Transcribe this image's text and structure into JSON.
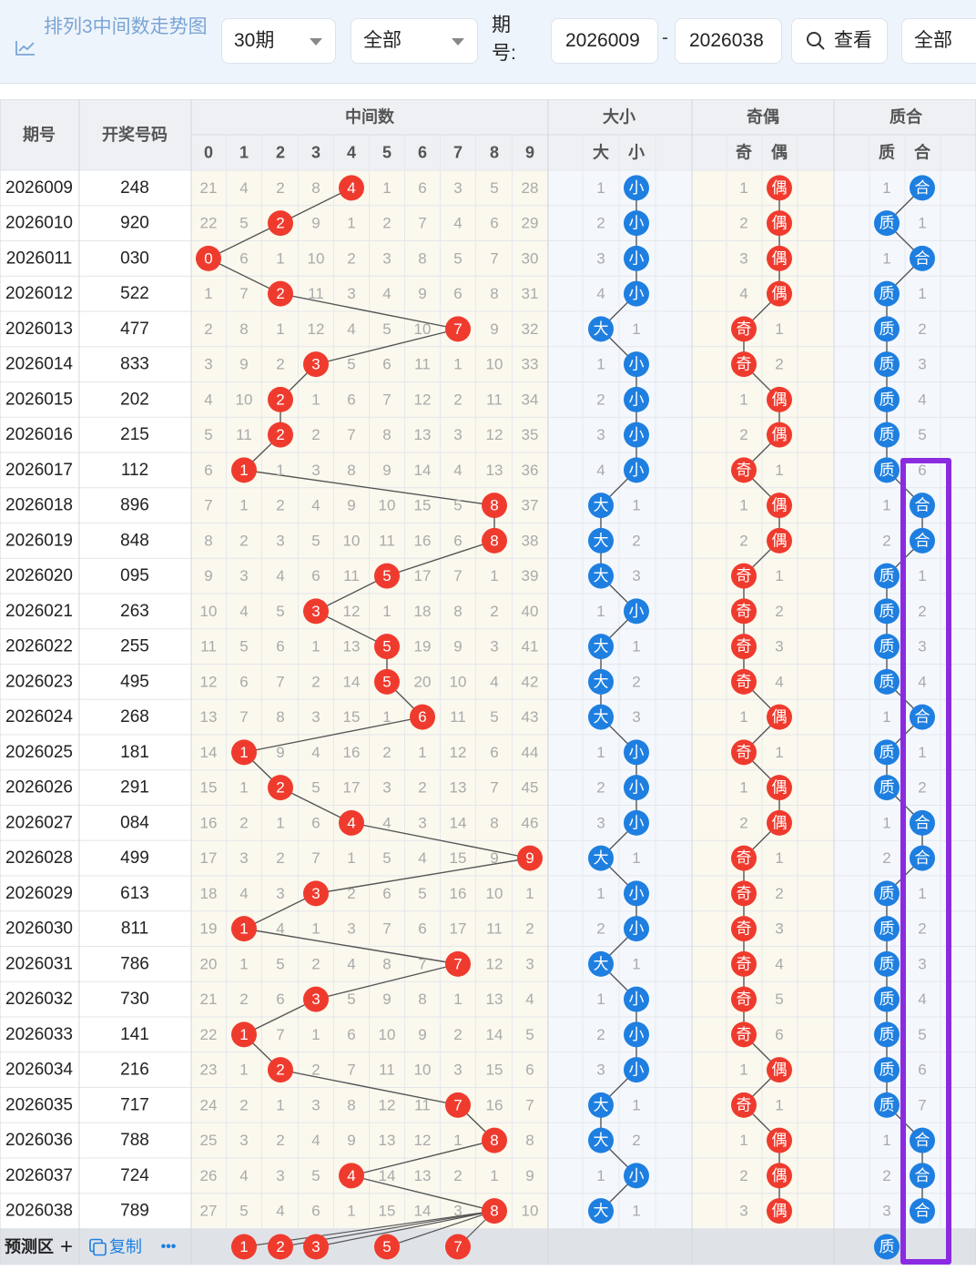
{
  "toolbar": {
    "title": "排列3中间数走势图",
    "periods_select": "30期",
    "scope_select": "全部",
    "period_label": "期号:",
    "start_period": "2026009",
    "end_period": "2026038",
    "dash": "-",
    "view_button": "查看",
    "filter_select": "全部"
  },
  "headers": {
    "issue": "期号",
    "number": "开奖号码",
    "middle": "中间数",
    "size": "大小",
    "parity": "奇偶",
    "prime": "质合",
    "digits": [
      "0",
      "1",
      "2",
      "3",
      "4",
      "5",
      "6",
      "7",
      "8",
      "9"
    ],
    "size_cols": [
      "大",
      "小"
    ],
    "parity_cols": [
      "奇",
      "偶"
    ],
    "prime_cols": [
      "质",
      "合"
    ]
  },
  "rows": [
    {
      "issue": "2026009",
      "number": "248",
      "mid": 4,
      "digit_misses": [
        21,
        4,
        2,
        8,
        null,
        1,
        6,
        3,
        5,
        28
      ],
      "size": "小",
      "size_miss": 1,
      "parity": "偶",
      "parity_miss": 1,
      "prime": "合",
      "prime_miss": 1
    },
    {
      "issue": "2026010",
      "number": "920",
      "mid": 2,
      "digit_misses": [
        22,
        5,
        null,
        9,
        1,
        2,
        7,
        4,
        6,
        29
      ],
      "size": "小",
      "size_miss": 2,
      "parity": "偶",
      "parity_miss": 2,
      "prime": "质",
      "prime_miss": 1
    },
    {
      "issue": "2026011",
      "number": "030",
      "mid": 0,
      "digit_misses": [
        null,
        6,
        1,
        10,
        2,
        3,
        8,
        5,
        7,
        30
      ],
      "size": "小",
      "size_miss": 3,
      "parity": "偶",
      "parity_miss": 3,
      "prime": "合",
      "prime_miss": 1
    },
    {
      "issue": "2026012",
      "number": "522",
      "mid": 2,
      "digit_misses": [
        1,
        7,
        null,
        11,
        3,
        4,
        9,
        6,
        8,
        31
      ],
      "size": "小",
      "size_miss": 4,
      "parity": "偶",
      "parity_miss": 4,
      "prime": "质",
      "prime_miss": 1
    },
    {
      "issue": "2026013",
      "number": "477",
      "mid": 7,
      "digit_misses": [
        2,
        8,
        1,
        12,
        4,
        5,
        10,
        null,
        9,
        32
      ],
      "size": "大",
      "size_miss": 1,
      "parity": "奇",
      "parity_miss": 1,
      "prime": "质",
      "prime_miss": 2
    },
    {
      "issue": "2026014",
      "number": "833",
      "mid": 3,
      "digit_misses": [
        3,
        9,
        2,
        null,
        5,
        6,
        11,
        1,
        10,
        33
      ],
      "size": "小",
      "size_miss": 1,
      "parity": "奇",
      "parity_miss": 2,
      "prime": "质",
      "prime_miss": 3
    },
    {
      "issue": "2026015",
      "number": "202",
      "mid": 2,
      "digit_misses": [
        4,
        10,
        null,
        1,
        6,
        7,
        12,
        2,
        11,
        34
      ],
      "size": "小",
      "size_miss": 2,
      "parity": "偶",
      "parity_miss": 1,
      "prime": "质",
      "prime_miss": 4
    },
    {
      "issue": "2026016",
      "number": "215",
      "mid": 2,
      "digit_misses": [
        5,
        11,
        null,
        2,
        7,
        8,
        13,
        3,
        12,
        35
      ],
      "size": "小",
      "size_miss": 3,
      "parity": "偶",
      "parity_miss": 2,
      "prime": "质",
      "prime_miss": 5
    },
    {
      "issue": "2026017",
      "number": "112",
      "mid": 1,
      "digit_misses": [
        6,
        null,
        1,
        3,
        8,
        9,
        14,
        4,
        13,
        36
      ],
      "size": "小",
      "size_miss": 4,
      "parity": "奇",
      "parity_miss": 1,
      "prime": "质",
      "prime_miss": 6
    },
    {
      "issue": "2026018",
      "number": "896",
      "mid": 8,
      "digit_misses": [
        7,
        1,
        2,
        4,
        9,
        10,
        15,
        5,
        null,
        37
      ],
      "size": "大",
      "size_miss": 1,
      "parity": "偶",
      "parity_miss": 1,
      "prime": "合",
      "prime_miss": 1
    },
    {
      "issue": "2026019",
      "number": "848",
      "mid": 8,
      "digit_misses": [
        8,
        2,
        3,
        5,
        10,
        11,
        16,
        6,
        null,
        38
      ],
      "size": "大",
      "size_miss": 2,
      "parity": "偶",
      "parity_miss": 2,
      "prime": "合",
      "prime_miss": 2
    },
    {
      "issue": "2026020",
      "number": "095",
      "mid": 5,
      "digit_misses": [
        9,
        3,
        4,
        6,
        11,
        null,
        17,
        7,
        1,
        39
      ],
      "size": "大",
      "size_miss": 3,
      "parity": "奇",
      "parity_miss": 1,
      "prime": "质",
      "prime_miss": 1
    },
    {
      "issue": "2026021",
      "number": "263",
      "mid": 3,
      "digit_misses": [
        10,
        4,
        5,
        null,
        12,
        1,
        18,
        8,
        2,
        40
      ],
      "size": "小",
      "size_miss": 1,
      "parity": "奇",
      "parity_miss": 2,
      "prime": "质",
      "prime_miss": 2
    },
    {
      "issue": "2026022",
      "number": "255",
      "mid": 5,
      "digit_misses": [
        11,
        5,
        6,
        1,
        13,
        null,
        19,
        9,
        3,
        41
      ],
      "size": "大",
      "size_miss": 1,
      "parity": "奇",
      "parity_miss": 3,
      "prime": "质",
      "prime_miss": 3
    },
    {
      "issue": "2026023",
      "number": "495",
      "mid": 5,
      "digit_misses": [
        12,
        6,
        7,
        2,
        14,
        null,
        20,
        10,
        4,
        42
      ],
      "size": "大",
      "size_miss": 2,
      "parity": "奇",
      "parity_miss": 4,
      "prime": "质",
      "prime_miss": 4
    },
    {
      "issue": "2026024",
      "number": "268",
      "mid": 6,
      "digit_misses": [
        13,
        7,
        8,
        3,
        15,
        1,
        null,
        11,
        5,
        43
      ],
      "size": "大",
      "size_miss": 3,
      "parity": "偶",
      "parity_miss": 1,
      "prime": "合",
      "prime_miss": 1
    },
    {
      "issue": "2026025",
      "number": "181",
      "mid": 1,
      "digit_misses": [
        14,
        null,
        9,
        4,
        16,
        2,
        1,
        12,
        6,
        44
      ],
      "size": "小",
      "size_miss": 1,
      "parity": "奇",
      "parity_miss": 1,
      "prime": "质",
      "prime_miss": 1
    },
    {
      "issue": "2026026",
      "number": "291",
      "mid": 2,
      "digit_misses": [
        15,
        1,
        null,
        5,
        17,
        3,
        2,
        13,
        7,
        45
      ],
      "size": "小",
      "size_miss": 2,
      "parity": "偶",
      "parity_miss": 1,
      "prime": "质",
      "prime_miss": 2
    },
    {
      "issue": "2026027",
      "number": "084",
      "mid": 4,
      "digit_misses": [
        16,
        2,
        1,
        6,
        null,
        4,
        3,
        14,
        8,
        46
      ],
      "size": "小",
      "size_miss": 3,
      "parity": "偶",
      "parity_miss": 2,
      "prime": "合",
      "prime_miss": 1
    },
    {
      "issue": "2026028",
      "number": "499",
      "mid": 9,
      "digit_misses": [
        17,
        3,
        2,
        7,
        1,
        5,
        4,
        15,
        9,
        null
      ],
      "size": "大",
      "size_miss": 1,
      "parity": "奇",
      "parity_miss": 1,
      "prime": "合",
      "prime_miss": 2
    },
    {
      "issue": "2026029",
      "number": "613",
      "mid": 3,
      "digit_misses": [
        18,
        4,
        3,
        null,
        2,
        6,
        5,
        16,
        10,
        1
      ],
      "size": "小",
      "size_miss": 1,
      "parity": "奇",
      "parity_miss": 2,
      "prime": "质",
      "prime_miss": 1
    },
    {
      "issue": "2026030",
      "number": "811",
      "mid": 1,
      "digit_misses": [
        19,
        null,
        4,
        1,
        3,
        7,
        6,
        17,
        11,
        2
      ],
      "size": "小",
      "size_miss": 2,
      "parity": "奇",
      "parity_miss": 3,
      "prime": "质",
      "prime_miss": 2
    },
    {
      "issue": "2026031",
      "number": "786",
      "mid": 7,
      "digit_misses": [
        20,
        1,
        5,
        2,
        4,
        8,
        7,
        null,
        12,
        3
      ],
      "size": "大",
      "size_miss": 1,
      "parity": "奇",
      "parity_miss": 4,
      "prime": "质",
      "prime_miss": 3
    },
    {
      "issue": "2026032",
      "number": "730",
      "mid": 3,
      "digit_misses": [
        21,
        2,
        6,
        null,
        5,
        9,
        8,
        1,
        13,
        4
      ],
      "size": "小",
      "size_miss": 1,
      "parity": "奇",
      "parity_miss": 5,
      "prime": "质",
      "prime_miss": 4
    },
    {
      "issue": "2026033",
      "number": "141",
      "mid": 1,
      "digit_misses": [
        22,
        null,
        7,
        1,
        6,
        10,
        9,
        2,
        14,
        5
      ],
      "size": "小",
      "size_miss": 2,
      "parity": "奇",
      "parity_miss": 6,
      "prime": "质",
      "prime_miss": 5
    },
    {
      "issue": "2026034",
      "number": "216",
      "mid": 2,
      "digit_misses": [
        23,
        1,
        null,
        2,
        7,
        11,
        10,
        3,
        15,
        6
      ],
      "size": "小",
      "size_miss": 3,
      "parity": "偶",
      "parity_miss": 1,
      "prime": "质",
      "prime_miss": 6
    },
    {
      "issue": "2026035",
      "number": "717",
      "mid": 7,
      "digit_misses": [
        24,
        2,
        1,
        3,
        8,
        12,
        11,
        null,
        16,
        7
      ],
      "size": "大",
      "size_miss": 1,
      "parity": "奇",
      "parity_miss": 1,
      "prime": "质",
      "prime_miss": 7
    },
    {
      "issue": "2026036",
      "number": "788",
      "mid": 8,
      "digit_misses": [
        25,
        3,
        2,
        4,
        9,
        13,
        12,
        1,
        null,
        8
      ],
      "size": "大",
      "size_miss": 2,
      "parity": "偶",
      "parity_miss": 1,
      "prime": "合",
      "prime_miss": 1
    },
    {
      "issue": "2026037",
      "number": "724",
      "mid": 4,
      "digit_misses": [
        26,
        4,
        3,
        5,
        null,
        14,
        13,
        2,
        1,
        9
      ],
      "size": "小",
      "size_miss": 1,
      "parity": "偶",
      "parity_miss": 2,
      "prime": "合",
      "prime_miss": 2
    },
    {
      "issue": "2026038",
      "number": "789",
      "mid": 8,
      "digit_misses": [
        27,
        5,
        4,
        6,
        1,
        15,
        14,
        3,
        null,
        10
      ],
      "size": "大",
      "size_miss": 1,
      "parity": "偶",
      "parity_miss": 3,
      "prime": "合",
      "prime_miss": 3
    }
  ],
  "predict": {
    "label": "预测区",
    "plus": "+",
    "copy": "复制",
    "more": "•••",
    "balls": [
      1,
      2,
      3,
      5,
      7
    ],
    "prime_ball": "质"
  },
  "colors": {
    "red": "#ef3b2e",
    "blue": "#1e7fe0",
    "purple": "#8a2be2",
    "toolbar_bg": "#eef4fb",
    "cream": "#fbf8ee",
    "blue_bg": "#f4f8fd"
  }
}
